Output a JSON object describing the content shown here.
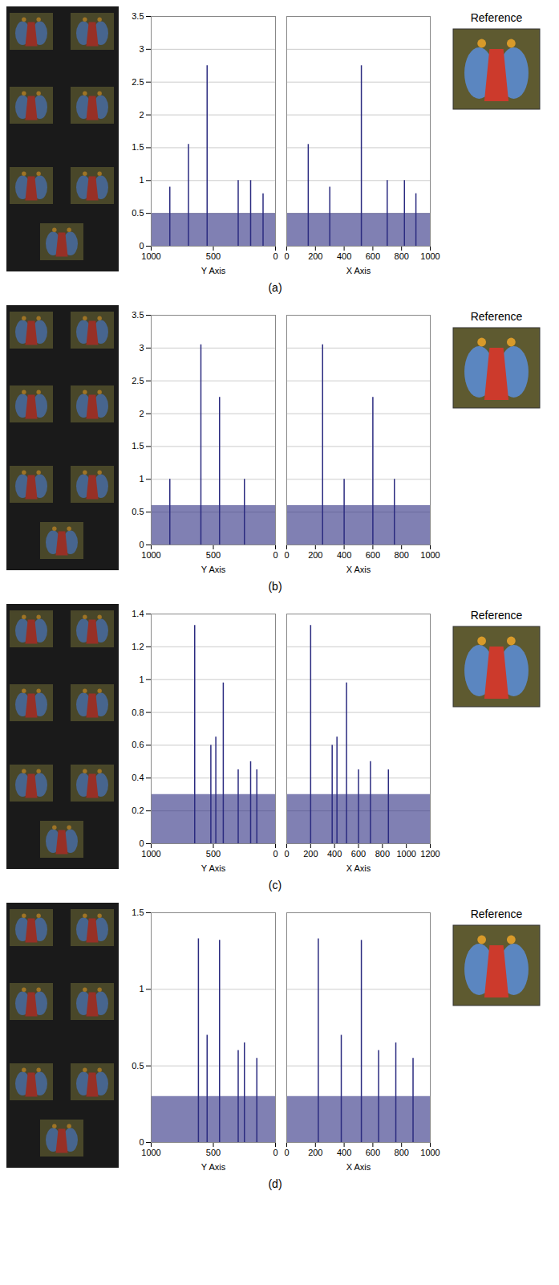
{
  "chart_data": [
    {
      "type": "bar3d",
      "caption": "(a)",
      "inset_title": "Reference",
      "xlabel": "X Axis",
      "ylabel": "Y Axis",
      "xlim": [
        0,
        1000
      ],
      "xticks": [
        0,
        200,
        400,
        600,
        800,
        1000
      ],
      "ylim": [
        0,
        1000
      ],
      "yticks": [
        0,
        500,
        1000
      ],
      "zlim": [
        0,
        3.5
      ],
      "zticks": [
        0,
        0.5,
        1,
        1.5,
        2,
        2.5,
        3,
        3.5
      ],
      "x": [
        150,
        520,
        700,
        820,
        300,
        900
      ],
      "y": [
        700,
        550,
        300,
        200,
        850,
        100
      ],
      "values": [
        1.55,
        2.75,
        1.0,
        1.0,
        0.9,
        0.8
      ],
      "noise_floor": 0.5,
      "color": "#2b2b80"
    },
    {
      "type": "bar3d",
      "caption": "(b)",
      "inset_title": "Reference",
      "xlabel": "X Axis",
      "ylabel": "Y Axis",
      "xlim": [
        0,
        1000
      ],
      "xticks": [
        0,
        200,
        400,
        600,
        800,
        1000
      ],
      "ylim": [
        0,
        1000
      ],
      "yticks": [
        0,
        500,
        1000
      ],
      "zlim": [
        0,
        3.5
      ],
      "zticks": [
        0,
        0.5,
        1,
        1.5,
        2,
        2.5,
        3,
        3.5
      ],
      "x": [
        250,
        600,
        750,
        400
      ],
      "y": [
        600,
        450,
        250,
        850
      ],
      "values": [
        3.05,
        2.25,
        1.0,
        1.0
      ],
      "noise_floor": 0.6,
      "color": "#2b2b80"
    },
    {
      "type": "bar3d",
      "caption": "(c)",
      "inset_title": "Reference",
      "xlabel": "X Axis",
      "ylabel": "Y Axis",
      "xlim": [
        0,
        1200
      ],
      "xticks": [
        0,
        200,
        400,
        600,
        800,
        1000,
        1200
      ],
      "ylim": [
        0,
        1000
      ],
      "yticks": [
        0,
        500,
        1000
      ],
      "zlim": [
        0,
        1.4
      ],
      "zticks": [
        0,
        0.2,
        0.4,
        0.6,
        0.8,
        1,
        1.2,
        1.4
      ],
      "x": [
        200,
        500,
        420,
        380,
        700,
        850,
        600
      ],
      "y": [
        650,
        420,
        480,
        520,
        200,
        150,
        300
      ],
      "values": [
        1.33,
        0.98,
        0.65,
        0.6,
        0.5,
        0.45,
        0.45
      ],
      "noise_floor": 0.3,
      "color": "#2b2b80"
    },
    {
      "type": "bar3d",
      "caption": "(d)",
      "inset_title": "Reference",
      "xlabel": "X Axis",
      "ylabel": "Y Axis",
      "xlim": [
        0,
        1000
      ],
      "xticks": [
        0,
        200,
        400,
        600,
        800,
        1000
      ],
      "ylim": [
        0,
        1000
      ],
      "yticks": [
        0,
        500,
        1000
      ],
      "zlim": [
        0,
        1.5
      ],
      "zticks": [
        0,
        0.5,
        1,
        1.5
      ],
      "x": [
        220,
        520,
        380,
        760,
        640,
        880
      ],
      "y": [
        620,
        450,
        550,
        250,
        300,
        150
      ],
      "values": [
        1.33,
        1.32,
        0.7,
        0.65,
        0.6,
        0.55
      ],
      "noise_floor": 0.3,
      "color": "#2b2b80"
    }
  ]
}
